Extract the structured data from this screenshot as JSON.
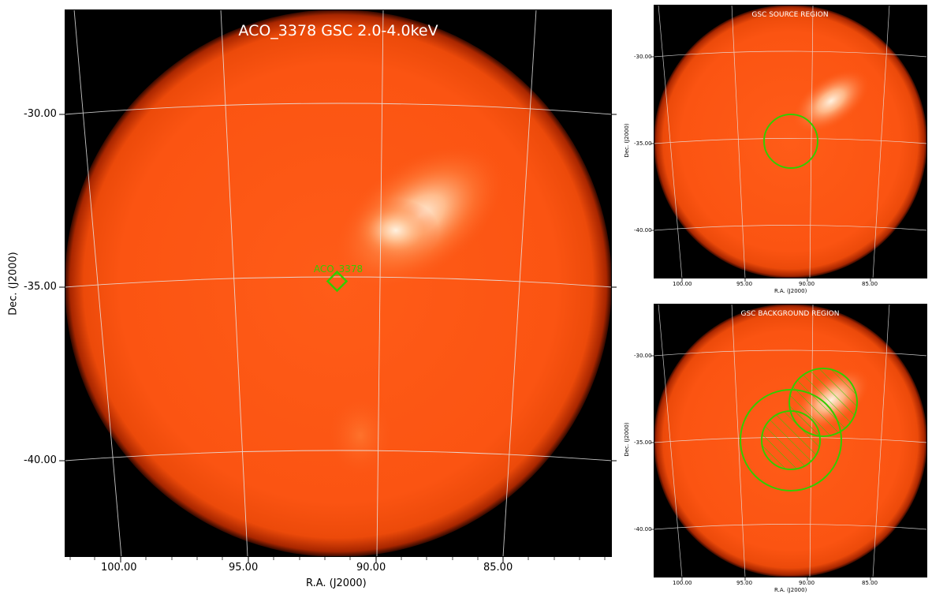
{
  "main": {
    "title": "ACO_3378 GSC 2.0-4.0keV",
    "xlabel": "R.A. (J2000)",
    "ylabel": "Dec. (J2000)",
    "ra_ticks": [
      "100.00",
      "95.00",
      "90.00",
      "85.00"
    ],
    "dec_ticks": [
      "-30.00",
      "-35.00",
      "-40.00"
    ],
    "marker_label": "ACO_3378"
  },
  "source_panel": {
    "title": "GSC SOURCE REGION",
    "xlabel": "R.A. (J2000)",
    "ylabel": "Dec. (J2000)",
    "ra_ticks": [
      "100.00",
      "95.00",
      "90.00",
      "85.00"
    ],
    "dec_ticks": [
      "-30.00",
      "-35.00",
      "-40.00"
    ]
  },
  "background_panel": {
    "title": "GSC BACKGROUND REGION",
    "xlabel": "R.A. (J2000)",
    "ylabel": "Dec. (J2000)",
    "ra_ticks": [
      "100.00",
      "95.00",
      "90.00",
      "85.00"
    ],
    "dec_ticks": [
      "-30.00",
      "-35.00",
      "-40.00"
    ]
  },
  "colors": {
    "disk_center": "#ff5a14",
    "disk_edge": "#b42800",
    "hotspot": "#fff0dc",
    "region": "#33cc00",
    "grid": "#dddddd"
  }
}
